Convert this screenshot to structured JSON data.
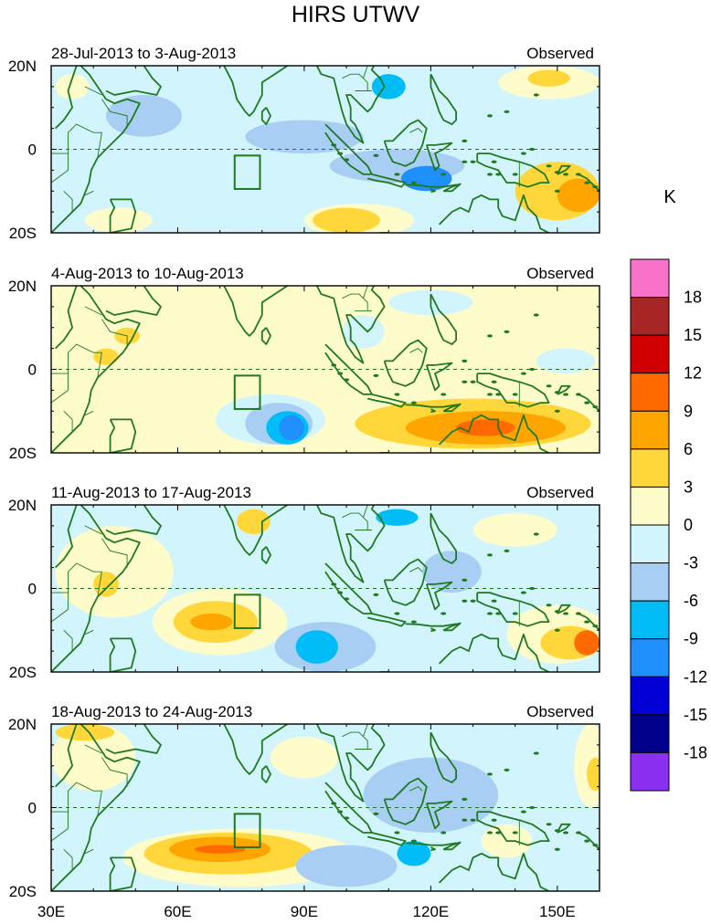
{
  "title": "HIRS UTWV",
  "unit": "K",
  "colors": {
    "coast": "#1f7a1f",
    "equator_line": "#1f7a1f",
    "box": "#1f7a1f",
    "frame": "#000000"
  },
  "legend": {
    "levels": [
      {
        "label": "18",
        "color": "#f772c8"
      },
      {
        "label": "15",
        "color": "#a62626"
      },
      {
        "label": "12",
        "color": "#d10000"
      },
      {
        "label": "9",
        "color": "#ff6a00"
      },
      {
        "label": "6",
        "color": "#ffa500"
      },
      {
        "label": "3",
        "color": "#ffd73a"
      },
      {
        "label": "0",
        "color": "#fffccc"
      },
      {
        "label": "-3",
        "color": "#d2f4fc"
      },
      {
        "label": "-6",
        "color": "#a8cef4"
      },
      {
        "label": "-9",
        "color": "#00bdf8"
      },
      {
        "label": "-12",
        "color": "#1f8ffc"
      },
      {
        "label": "-15",
        "color": "#0000d6"
      },
      {
        "label": "-18",
        "color": "#00008b"
      },
      {
        "label": "",
        "color": "#8b2ff0"
      }
    ]
  },
  "axes": {
    "x_ticks": [
      "30E",
      "60E",
      "90E",
      "120E",
      "150E"
    ],
    "y_ticks": [
      "20N",
      "0",
      "20S"
    ],
    "lon_range": [
      30,
      160
    ],
    "lat_range": [
      -20,
      20
    ]
  },
  "panels": [
    {
      "period": "28-Jul-2013 to 3-Aug-2013",
      "tag": "Observed",
      "background": "#d2f4fc",
      "anomalies": [
        {
          "lon": 90,
          "lat": 3,
          "rx": 14,
          "ry": 4,
          "color": "#a8cef4"
        },
        {
          "lon": 52,
          "lat": 8,
          "rx": 9,
          "ry": 5,
          "color": "#a8cef4"
        },
        {
          "lon": 112,
          "lat": -4,
          "rx": 16,
          "ry": 4,
          "color": "#a8cef4"
        },
        {
          "lon": 119,
          "lat": -7,
          "rx": 6,
          "ry": 3,
          "color": "#1f8ffc"
        },
        {
          "lon": 110,
          "lat": 15,
          "rx": 4,
          "ry": 3,
          "color": "#00bdf8"
        },
        {
          "lon": 148,
          "lat": 16,
          "rx": 12,
          "ry": 4,
          "color": "#fffccc"
        },
        {
          "lon": 148,
          "lat": 17,
          "rx": 5,
          "ry": 2,
          "color": "#ffd73a"
        },
        {
          "lon": 103,
          "lat": -17,
          "rx": 13,
          "ry": 4,
          "color": "#fffccc"
        },
        {
          "lon": 100,
          "lat": -17,
          "rx": 8,
          "ry": 3,
          "color": "#ffd73a"
        },
        {
          "lon": 150,
          "lat": -10,
          "rx": 10,
          "ry": 7,
          "color": "#ffd73a"
        },
        {
          "lon": 155,
          "lat": -11,
          "rx": 5,
          "ry": 4,
          "color": "#ffa500"
        },
        {
          "lon": 46,
          "lat": -17,
          "rx": 8,
          "ry": 3,
          "color": "#fffccc"
        },
        {
          "lon": 35,
          "lat": 15,
          "rx": 4,
          "ry": 3,
          "color": "#fffccc"
        }
      ]
    },
    {
      "period": "4-Aug-2013 to 10-Aug-2013",
      "tag": "Observed",
      "background": "#fffccc",
      "anomalies": [
        {
          "lon": 82,
          "lat": -12,
          "rx": 13,
          "ry": 6,
          "color": "#d2f4fc"
        },
        {
          "lon": 84,
          "lat": -13,
          "rx": 8,
          "ry": 5,
          "color": "#a8cef4"
        },
        {
          "lon": 86,
          "lat": -14,
          "rx": 5,
          "ry": 4,
          "color": "#00bdf8"
        },
        {
          "lon": 87,
          "lat": -14,
          "rx": 3,
          "ry": 3,
          "color": "#1f8ffc"
        },
        {
          "lon": 130,
          "lat": -13,
          "rx": 28,
          "ry": 6,
          "color": "#ffd73a"
        },
        {
          "lon": 133,
          "lat": -14,
          "rx": 19,
          "ry": 4,
          "color": "#ffa500"
        },
        {
          "lon": 133,
          "lat": -14,
          "rx": 7,
          "ry": 2,
          "color": "#ff6a00"
        },
        {
          "lon": 120,
          "lat": 16,
          "rx": 10,
          "ry": 3,
          "color": "#d2f4fc"
        },
        {
          "lon": 104,
          "lat": 9,
          "rx": 5,
          "ry": 4,
          "color": "#d2f4fc"
        },
        {
          "lon": 152,
          "lat": 2,
          "rx": 7,
          "ry": 3,
          "color": "#d2f4fc"
        },
        {
          "lon": 48,
          "lat": 8,
          "rx": 3,
          "ry": 2,
          "color": "#ffd73a"
        },
        {
          "lon": 43,
          "lat": 3,
          "rx": 3,
          "ry": 2,
          "color": "#ffd73a"
        }
      ]
    },
    {
      "period": "11-Aug-2013 to 17-Aug-2013",
      "tag": "Observed",
      "background": "#d2f4fc",
      "anomalies": [
        {
          "lon": 45,
          "lat": 4,
          "rx": 14,
          "ry": 11,
          "color": "#fffccc"
        },
        {
          "lon": 43,
          "lat": 1,
          "rx": 3,
          "ry": 3,
          "color": "#ffd73a"
        },
        {
          "lon": 70,
          "lat": -8,
          "rx": 16,
          "ry": 8,
          "color": "#fffccc"
        },
        {
          "lon": 69,
          "lat": -8,
          "rx": 10,
          "ry": 5,
          "color": "#ffd73a"
        },
        {
          "lon": 68,
          "lat": -8,
          "rx": 5,
          "ry": 2,
          "color": "#ffa500"
        },
        {
          "lon": 95,
          "lat": -14,
          "rx": 12,
          "ry": 6,
          "color": "#a8cef4"
        },
        {
          "lon": 93,
          "lat": -14,
          "rx": 5,
          "ry": 4,
          "color": "#00bdf8"
        },
        {
          "lon": 150,
          "lat": -11,
          "rx": 12,
          "ry": 7,
          "color": "#fffccc"
        },
        {
          "lon": 153,
          "lat": -13,
          "rx": 7,
          "ry": 4,
          "color": "#ffd73a"
        },
        {
          "lon": 157,
          "lat": -13,
          "rx": 3,
          "ry": 3,
          "color": "#ff6a00"
        },
        {
          "lon": 140,
          "lat": 14,
          "rx": 10,
          "ry": 4,
          "color": "#fffccc"
        },
        {
          "lon": 112,
          "lat": 17,
          "rx": 5,
          "ry": 2,
          "color": "#00bdf8"
        },
        {
          "lon": 125,
          "lat": 4,
          "rx": 7,
          "ry": 5,
          "color": "#a8cef4"
        },
        {
          "lon": 78,
          "lat": 16,
          "rx": 4,
          "ry": 3,
          "color": "#ffd73a"
        }
      ]
    },
    {
      "period": "18-Aug-2013 to 24-Aug-2013",
      "tag": "Observed",
      "background": "#d2f4fc",
      "anomalies": [
        {
          "lon": 40,
          "lat": 12,
          "rx": 10,
          "ry": 8,
          "color": "#fffccc"
        },
        {
          "lon": 38,
          "lat": 18,
          "rx": 7,
          "ry": 2,
          "color": "#ffd73a"
        },
        {
          "lon": 75,
          "lat": -12,
          "rx": 28,
          "ry": 7,
          "color": "#fffccc"
        },
        {
          "lon": 72,
          "lat": -11,
          "rx": 20,
          "ry": 5,
          "color": "#ffd73a"
        },
        {
          "lon": 70,
          "lat": -10,
          "rx": 12,
          "ry": 3,
          "color": "#ffa500"
        },
        {
          "lon": 70,
          "lat": -10,
          "rx": 6,
          "ry": 1,
          "color": "#ff6a00"
        },
        {
          "lon": 100,
          "lat": -14,
          "rx": 12,
          "ry": 5,
          "color": "#a8cef4"
        },
        {
          "lon": 116,
          "lat": -11,
          "rx": 4,
          "ry": 3,
          "color": "#00bdf8"
        },
        {
          "lon": 120,
          "lat": 3,
          "rx": 16,
          "ry": 9,
          "color": "#a8cef4"
        },
        {
          "lon": 158,
          "lat": 10,
          "rx": 4,
          "ry": 10,
          "color": "#fffccc"
        },
        {
          "lon": 159,
          "lat": 8,
          "rx": 2,
          "ry": 4,
          "color": "#ffd73a"
        },
        {
          "lon": 138,
          "lat": -8,
          "rx": 6,
          "ry": 4,
          "color": "#fffccc"
        },
        {
          "lon": 90,
          "lat": 12,
          "rx": 8,
          "ry": 5,
          "color": "#fffccc"
        }
      ]
    }
  ]
}
